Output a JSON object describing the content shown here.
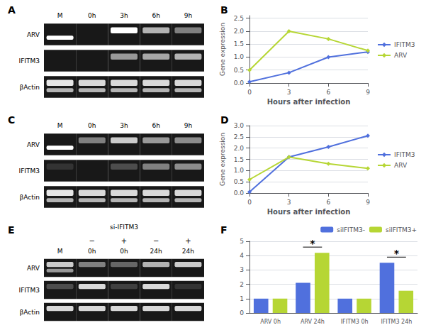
{
  "chart_data": [
    {
      "type": "gel",
      "title": "A",
      "categories": [
        "M",
        "0h",
        "3h",
        "6h",
        "9h"
      ],
      "rows": [
        "ARV",
        "IFITM3",
        "βActin"
      ],
      "cells": [
        [
          [
            0,
            1
          ],
          [
            0,
            0
          ],
          [
            1,
            0
          ],
          [
            0.7,
            0
          ],
          [
            0.5,
            0
          ]
        ],
        [
          [
            0,
            0
          ],
          [
            0,
            0
          ],
          [
            0.6,
            0
          ],
          [
            0.65,
            0
          ],
          [
            0.7,
            0
          ]
        ],
        [
          [
            0.9,
            0.7
          ],
          [
            0.85,
            0.7
          ],
          [
            0.85,
            0.7
          ],
          [
            0.85,
            0.7
          ],
          [
            0.85,
            0.7
          ]
        ]
      ]
    },
    {
      "type": "line",
      "title": "B",
      "x": [
        0,
        3,
        6,
        9
      ],
      "series": [
        {
          "name": "IFITM3",
          "values": [
            0.05,
            0.4,
            1.0,
            1.2
          ]
        },
        {
          "name": "ARV",
          "values": [
            0.5,
            2.0,
            1.7,
            1.25
          ]
        }
      ],
      "xlabel": "Hours after infection",
      "ylabel": "Gene expression",
      "xlim": [
        0,
        9
      ],
      "xticks": [
        0,
        3,
        6,
        9
      ],
      "ylim": [
        0,
        2.6
      ],
      "yticks": [
        {
          "value": 0,
          "label": "0.0"
        },
        0.5,
        {
          "value": 1,
          "label": "1.0"
        },
        1.5,
        {
          "value": 2,
          "label": "2.0"
        },
        2.5
      ],
      "marker": "diamond",
      "grid": "y",
      "legend": "right"
    },
    {
      "type": "gel",
      "title": "C",
      "categories": [
        "M",
        "0h",
        "3h",
        "6h",
        "9h"
      ],
      "rows": [
        "ARV",
        "IFITM3",
        "βActin"
      ],
      "cells": [
        [
          [
            0,
            1
          ],
          [
            0.5,
            0
          ],
          [
            0.8,
            0
          ],
          [
            0.6,
            0
          ],
          [
            0.55,
            0
          ]
        ],
        [
          [
            0.2,
            0
          ],
          [
            0,
            0
          ],
          [
            0.3,
            0
          ],
          [
            0.5,
            0
          ],
          [
            0.55,
            0
          ]
        ],
        [
          [
            0.9,
            0.7
          ],
          [
            0.85,
            0.7
          ],
          [
            0.85,
            0.7
          ],
          [
            0.85,
            0.7
          ],
          [
            0.85,
            0.7
          ]
        ]
      ]
    },
    {
      "type": "line",
      "title": "D",
      "x": [
        0,
        3,
        6,
        9
      ],
      "series": [
        {
          "name": "IFITM3",
          "values": [
            0.05,
            1.6,
            2.05,
            2.55
          ]
        },
        {
          "name": "ARV",
          "values": [
            0.6,
            1.6,
            1.3,
            1.1
          ]
        }
      ],
      "xlabel": "Hours after infection",
      "ylabel": "Gene expression",
      "xlim": [
        0,
        9
      ],
      "xticks": [
        0,
        3,
        6,
        9
      ],
      "ylim": [
        0,
        3
      ],
      "yticks": [
        {
          "value": 0,
          "label": "0.0"
        },
        0.5,
        {
          "value": 1,
          "label": "1.0"
        },
        1.5,
        {
          "value": 2,
          "label": "2.0"
        },
        2.5,
        {
          "value": 3,
          "label": "3.0"
        }
      ],
      "marker": "diamond",
      "grid": "y",
      "legend": "right"
    },
    {
      "type": "gel",
      "title": "E",
      "categories": [
        "M",
        "0h",
        "0h",
        "24h",
        "24h"
      ],
      "rows": [
        "ARV",
        "IFITM3",
        "βActin"
      ],
      "cells": [
        [
          [
            0.8,
            0.6
          ],
          [
            0.5,
            0
          ],
          [
            0.4,
            0
          ],
          [
            0.7,
            0
          ],
          [
            0.8,
            0
          ]
        ],
        [
          [
            0.3,
            0
          ],
          [
            0.85,
            0
          ],
          [
            0.25,
            0
          ],
          [
            0.85,
            0
          ],
          [
            0.2,
            0
          ]
        ],
        [
          [
            0.85,
            0
          ],
          [
            0.85,
            0
          ],
          [
            0.85,
            0
          ],
          [
            0.85,
            0
          ],
          [
            0.85,
            0
          ]
        ]
      ],
      "signs": [
        null,
        "−",
        "+",
        "−",
        "+"
      ],
      "signs_label": "si-IFITM3"
    },
    {
      "type": "bar",
      "title": "F",
      "categories": [
        "ARV 0h",
        "ARV 24h",
        "IFITM3 0h",
        "IFITM3 24h"
      ],
      "series": [
        {
          "name": "silFITM3-",
          "values": [
            1.0,
            2.1,
            1.0,
            3.5
          ]
        },
        {
          "name": "silFITM3+",
          "values": [
            1.0,
            4.2,
            1.0,
            1.55
          ]
        }
      ],
      "ylim": [
        0,
        5
      ],
      "yticks": [
        0,
        1,
        2,
        3,
        4,
        5
      ],
      "grid": "y",
      "legend": "upper right",
      "annotations": [
        {
          "text": "*",
          "category": "ARV 24h"
        },
        {
          "text": "*",
          "category": "IFITM3 24h"
        }
      ]
    }
  ]
}
